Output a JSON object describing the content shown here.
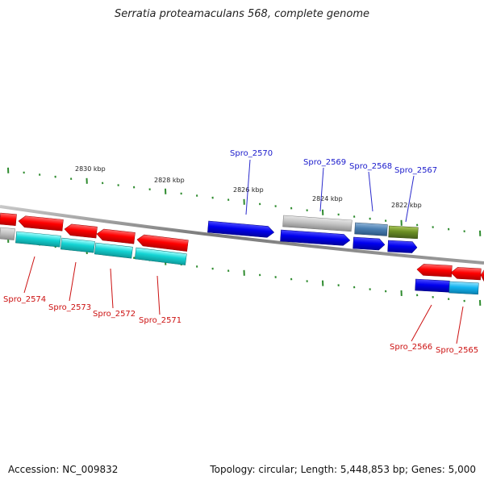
{
  "title": "Serratia proteamaculans 568, complete genome",
  "footer": {
    "accession": "Accession: NC_009832",
    "summary": "Topology: circular; Length: 5,448,853 bp; Genes: 5,000"
  },
  "colors": {
    "forward_label": "#1a1acc",
    "reverse_label": "#cc1111",
    "tick": "#2e8b2e",
    "backbone": "#888888"
  },
  "kbp_labels": [
    "2830 kbp",
    "2828 kbp",
    "2826 kbp",
    "2824 kbp",
    "2822 kbp"
  ],
  "gene_labels": {
    "top": [
      "Spro_2570",
      "Spro_2569",
      "Spro_2568",
      "Spro_2567"
    ],
    "bottom": [
      "Spro_2574",
      "Spro_2573",
      "Spro_2572",
      "Spro_2571",
      "Spro_2566",
      "Spro_2565"
    ]
  }
}
